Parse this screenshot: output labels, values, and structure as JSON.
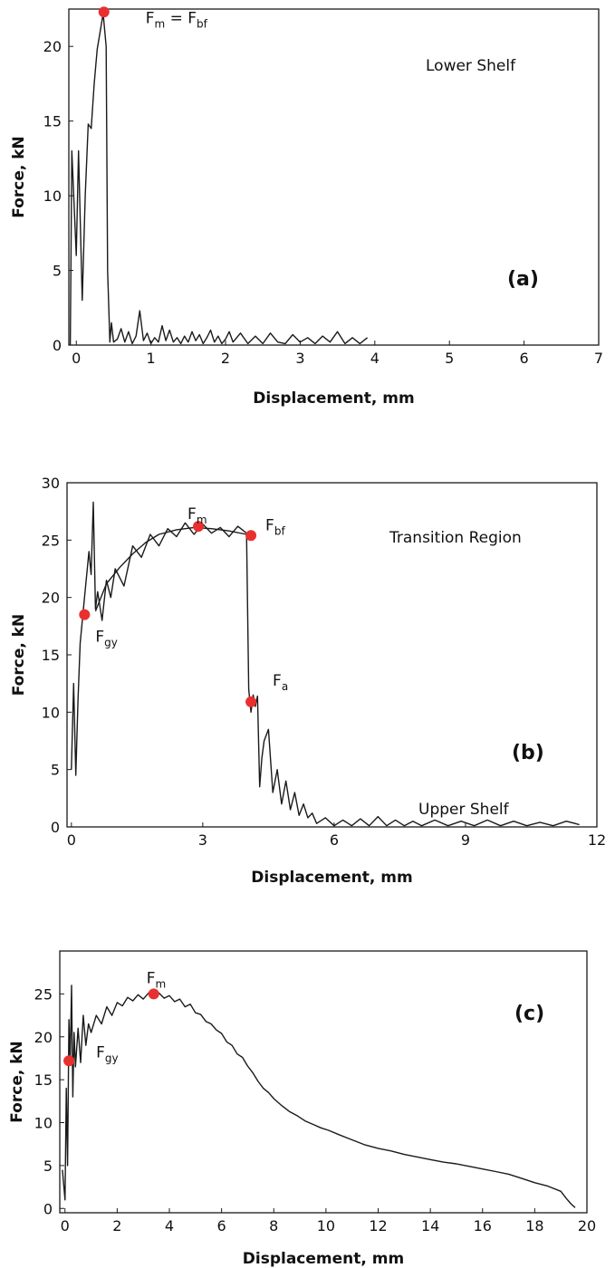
{
  "chart_data": [
    {
      "type": "line",
      "xlabel": "Displacement, mm",
      "ylabel": "Force, kN",
      "xlim": [
        -0.1,
        7
      ],
      "ylim": [
        0,
        22.5
      ],
      "xticks": [
        "0",
        "1",
        "2",
        "3",
        "4",
        "5",
        "6",
        "7"
      ],
      "yticks": [
        "0",
        "5",
        "10",
        "15",
        "20"
      ],
      "region_label": "Lower Shelf",
      "panel_label": "(a)",
      "color": "#1a1a1a",
      "marker_color": "#e8312f",
      "series": [
        {
          "x": [
            -0.08,
            -0.06,
            0.0,
            0.03,
            0.08,
            0.12,
            0.16,
            0.2,
            0.24,
            0.28,
            0.32,
            0.36,
            0.4,
            0.42,
            0.45,
            0.47,
            0.5,
            0.55,
            0.6,
            0.65,
            0.7,
            0.75,
            0.8,
            0.85,
            0.9,
            0.95,
            1.0,
            1.05,
            1.1,
            1.15,
            1.2,
            1.25,
            1.3,
            1.35,
            1.4,
            1.45,
            1.5,
            1.55,
            1.6,
            1.65,
            1.7,
            1.75,
            1.8,
            1.85,
            1.9,
            1.95,
            2.0,
            2.05,
            2.1,
            2.2,
            2.3,
            2.4,
            2.5,
            2.6,
            2.7,
            2.8,
            2.9,
            3.0,
            3.1,
            3.2,
            3.3,
            3.4,
            3.5,
            3.6,
            3.7,
            3.8,
            3.9
          ],
          "y": [
            0,
            13,
            6,
            13,
            3,
            10,
            14.8,
            14.5,
            17.5,
            19.8,
            21,
            22.2,
            20,
            5,
            0.2,
            1.5,
            0.2,
            0.4,
            1.1,
            0.2,
            0.9,
            0.1,
            0.6,
            2.3,
            0.3,
            0.8,
            0.1,
            0.5,
            0.2,
            1.3,
            0.3,
            1.0,
            0.2,
            0.5,
            0.1,
            0.6,
            0.2,
            0.9,
            0.3,
            0.7,
            0.1,
            0.5,
            1.0,
            0.2,
            0.6,
            0.1,
            0.4,
            0.9,
            0.2,
            0.8,
            0.1,
            0.6,
            0.1,
            0.8,
            0.2,
            0.1,
            0.7,
            0.2,
            0.5,
            0.1,
            0.6,
            0.2,
            0.9,
            0.1,
            0.5,
            0.1,
            0.5
          ]
        }
      ],
      "points": [
        {
          "x": 0.37,
          "y": 22.3,
          "label": "F",
          "sub": "m",
          "label2": " = F",
          "sub2": "bf"
        }
      ]
    },
    {
      "type": "line",
      "xlabel": "Displacement, mm",
      "ylabel": "Force, kN",
      "xlim": [
        -0.1,
        12
      ],
      "ylim": [
        0,
        30
      ],
      "xticks": [
        "0",
        "3",
        "6",
        "9",
        "12"
      ],
      "yticks": [
        "0",
        "5",
        "10",
        "15",
        "20",
        "25",
        "30"
      ],
      "region_label": "Transition Region",
      "panel_label": "(b)",
      "color": "#1a1a1a",
      "marker_color": "#e8312f",
      "series": [
        {
          "x": [
            0.0,
            0.05,
            0.1,
            0.15,
            0.2,
            0.3,
            0.4,
            0.45,
            0.5,
            0.55,
            0.6,
            0.7,
            0.8,
            0.9,
            1.0,
            1.2,
            1.4,
            1.6,
            1.8,
            2.0,
            2.2,
            2.4,
            2.6,
            2.8,
            3.0,
            3.2,
            3.4,
            3.6,
            3.8,
            4.0,
            4.05,
            4.1,
            4.15,
            4.2,
            4.25,
            4.3,
            4.35,
            4.4,
            4.5,
            4.6,
            4.7,
            4.8,
            4.9,
            5.0,
            5.1,
            5.2,
            5.3,
            5.4,
            5.5,
            5.6,
            5.8,
            6.0,
            6.2,
            6.4,
            6.6,
            6.8,
            7.0,
            7.2,
            7.4,
            7.6,
            7.8,
            8.0,
            8.3,
            8.6,
            8.9,
            9.2,
            9.5,
            9.8,
            10.1,
            10.4,
            10.7,
            11.0,
            11.3,
            11.6
          ],
          "y": [
            5,
            12.5,
            4.5,
            11,
            16,
            20,
            24,
            22,
            28.3,
            19,
            20.5,
            18,
            21.5,
            20,
            22.5,
            21,
            24.5,
            23.5,
            25.5,
            24.5,
            26,
            25.3,
            26.5,
            25.5,
            26.4,
            25.6,
            26.1,
            25.3,
            26.2,
            25.6,
            12,
            10,
            11.5,
            10.5,
            11.4,
            3.5,
            6,
            7.5,
            8.5,
            3,
            5,
            2,
            4,
            1.5,
            3,
            1,
            2,
            0.8,
            1.2,
            0.3,
            0.8,
            0.1,
            0.6,
            0.1,
            0.7,
            0.1,
            0.9,
            0.1,
            0.6,
            0.1,
            0.5,
            0.1,
            0.6,
            0.1,
            0.5,
            0.1,
            0.6,
            0.1,
            0.5,
            0.1,
            0.4,
            0.1,
            0.5,
            0.2
          ]
        },
        {
          "x": [
            0.55,
            0.8,
            1.1,
            1.4,
            1.7,
            2.0,
            2.4,
            2.8,
            3.2,
            3.6,
            4.0
          ],
          "y": [
            18.8,
            21.2,
            22.6,
            23.8,
            24.8,
            25.5,
            25.9,
            26.1,
            26.0,
            25.8,
            25.5
          ]
        }
      ],
      "points": [
        {
          "x": 0.3,
          "y": 18.5,
          "label": "F",
          "sub": "gy"
        },
        {
          "x": 2.9,
          "y": 26.2,
          "label": "F",
          "sub": "m"
        },
        {
          "x": 4.1,
          "y": 25.4,
          "label": "F",
          "sub": "bf"
        },
        {
          "x": 4.1,
          "y": 10.9,
          "label": "F",
          "sub": "a"
        }
      ]
    },
    {
      "type": "line",
      "xlabel": "Displacement, mm",
      "ylabel": "Force, kN",
      "xlim": [
        -0.2,
        20
      ],
      "ylim": [
        -0.5,
        30
      ],
      "xticks": [
        "0",
        "2",
        "4",
        "6",
        "8",
        "10",
        "12",
        "14",
        "16",
        "18",
        "20"
      ],
      "yticks": [
        "0",
        "5",
        "10",
        "15",
        "20",
        "25"
      ],
      "region_label": "Upper Shelf",
      "panel_label": "(c)",
      "color": "#1a1a1a",
      "marker_color": "#e8312f",
      "series": [
        {
          "x": [
            -0.1,
            0.0,
            0.05,
            0.1,
            0.15,
            0.2,
            0.25,
            0.3,
            0.35,
            0.4,
            0.5,
            0.6,
            0.7,
            0.8,
            0.9,
            1.0,
            1.2,
            1.4,
            1.6,
            1.8,
            2.0,
            2.2,
            2.4,
            2.6,
            2.8,
            3.0,
            3.2,
            3.4,
            3.6,
            3.8,
            4.0,
            4.2,
            4.4,
            4.6,
            4.8,
            5.0,
            5.2,
            5.4,
            5.6,
            5.8,
            6.0,
            6.2,
            6.4,
            6.6,
            6.8,
            7.0,
            7.2,
            7.4,
            7.6,
            7.8,
            8.0,
            8.3,
            8.6,
            8.9,
            9.2,
            9.5,
            9.8,
            10.1,
            10.5,
            11.0,
            11.5,
            12.0,
            12.5,
            13.0,
            13.5,
            14.0,
            14.5,
            15.0,
            15.5,
            16.0,
            16.5,
            17.0,
            17.5,
            18.0,
            18.5,
            19.0,
            19.2,
            19.4,
            19.55
          ],
          "y": [
            4.5,
            1,
            14,
            5,
            22,
            17,
            26,
            13,
            20.5,
            16.5,
            21,
            17,
            22.5,
            19,
            21.5,
            20.5,
            22.5,
            21.5,
            23.5,
            22.5,
            24,
            23.6,
            24.6,
            24.2,
            24.9,
            24.4,
            25.1,
            24.7,
            25.1,
            24.5,
            24.8,
            24.1,
            24.4,
            23.5,
            23.8,
            22.8,
            22.6,
            21.8,
            21.5,
            20.8,
            20.4,
            19.4,
            19.0,
            18.0,
            17.6,
            16.6,
            15.8,
            14.8,
            14.0,
            13.5,
            12.8,
            12.0,
            11.3,
            10.8,
            10.2,
            9.8,
            9.4,
            9.1,
            8.6,
            8.0,
            7.4,
            7.0,
            6.7,
            6.3,
            6.0,
            5.7,
            5.4,
            5.2,
            4.9,
            4.6,
            4.3,
            4.0,
            3.5,
            3.0,
            2.6,
            2.0,
            1.2,
            0.5,
            0.1
          ]
        }
      ],
      "points": [
        {
          "x": 0.15,
          "y": 17.2,
          "label": "F",
          "sub": "gy"
        },
        {
          "x": 3.4,
          "y": 25.0,
          "label": "F",
          "sub": "m"
        }
      ]
    }
  ]
}
